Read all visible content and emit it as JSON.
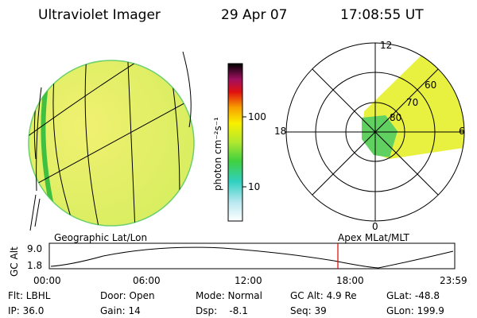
{
  "header": {
    "instrument": "Ultraviolet Imager",
    "date": "29 Apr 07",
    "time": "17:08:55 UT"
  },
  "colorbar": {
    "unit": "photon cm⁻²s⁻¹",
    "labels": [
      "100",
      "10"
    ]
  },
  "polar": {
    "mlt_labels": [
      "12",
      "18",
      "6",
      "0"
    ],
    "lat_labels": [
      "60",
      "70",
      "80"
    ]
  },
  "altitude_plot": {
    "left_title": "Geographic Lat/Lon",
    "right_title": "Apex MLat/MLT",
    "axis_label": "GC Alt",
    "y_labels": [
      "9.0",
      "1.8"
    ],
    "time_labels": [
      "00:00",
      "06:00",
      "12:00",
      "18:00",
      "23:59"
    ]
  },
  "footer": {
    "rows": [
      [
        "Flt: LBHL",
        "Door: Open",
        "Mode: Normal",
        "GC Alt: 4.9 Re",
        "GLat: -48.8"
      ],
      [
        "IP: 36.0",
        "Gain: 14",
        "Dsp:    -8.1",
        "Seq: 39",
        "GLon: 199.9"
      ]
    ]
  }
}
